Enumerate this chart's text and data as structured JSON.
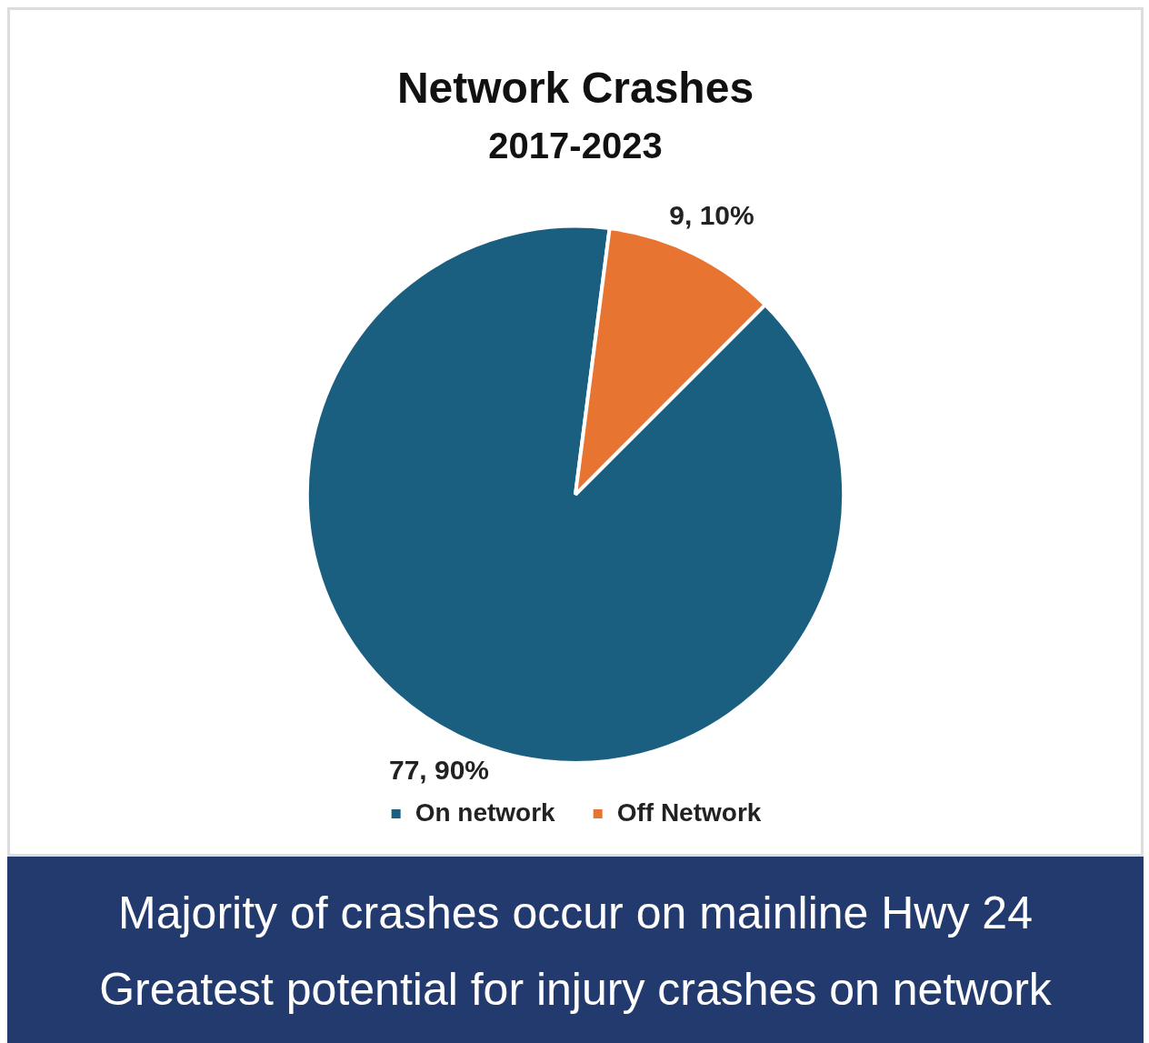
{
  "chart_data": {
    "type": "pie",
    "title": "Network Crashes",
    "subtitle": "2017-2023",
    "categories": [
      "On network",
      "Off Network"
    ],
    "values": [
      77,
      9
    ],
    "colors": [
      "#1a5f80",
      "#e87432"
    ],
    "value_labels": [
      "77, 90%",
      "9, 10%"
    ],
    "legend": "bottom",
    "annotations": [
      "Majority of crashes occur on mainline Hwy 24",
      "Greatest potential for injury crashes on network"
    ]
  }
}
